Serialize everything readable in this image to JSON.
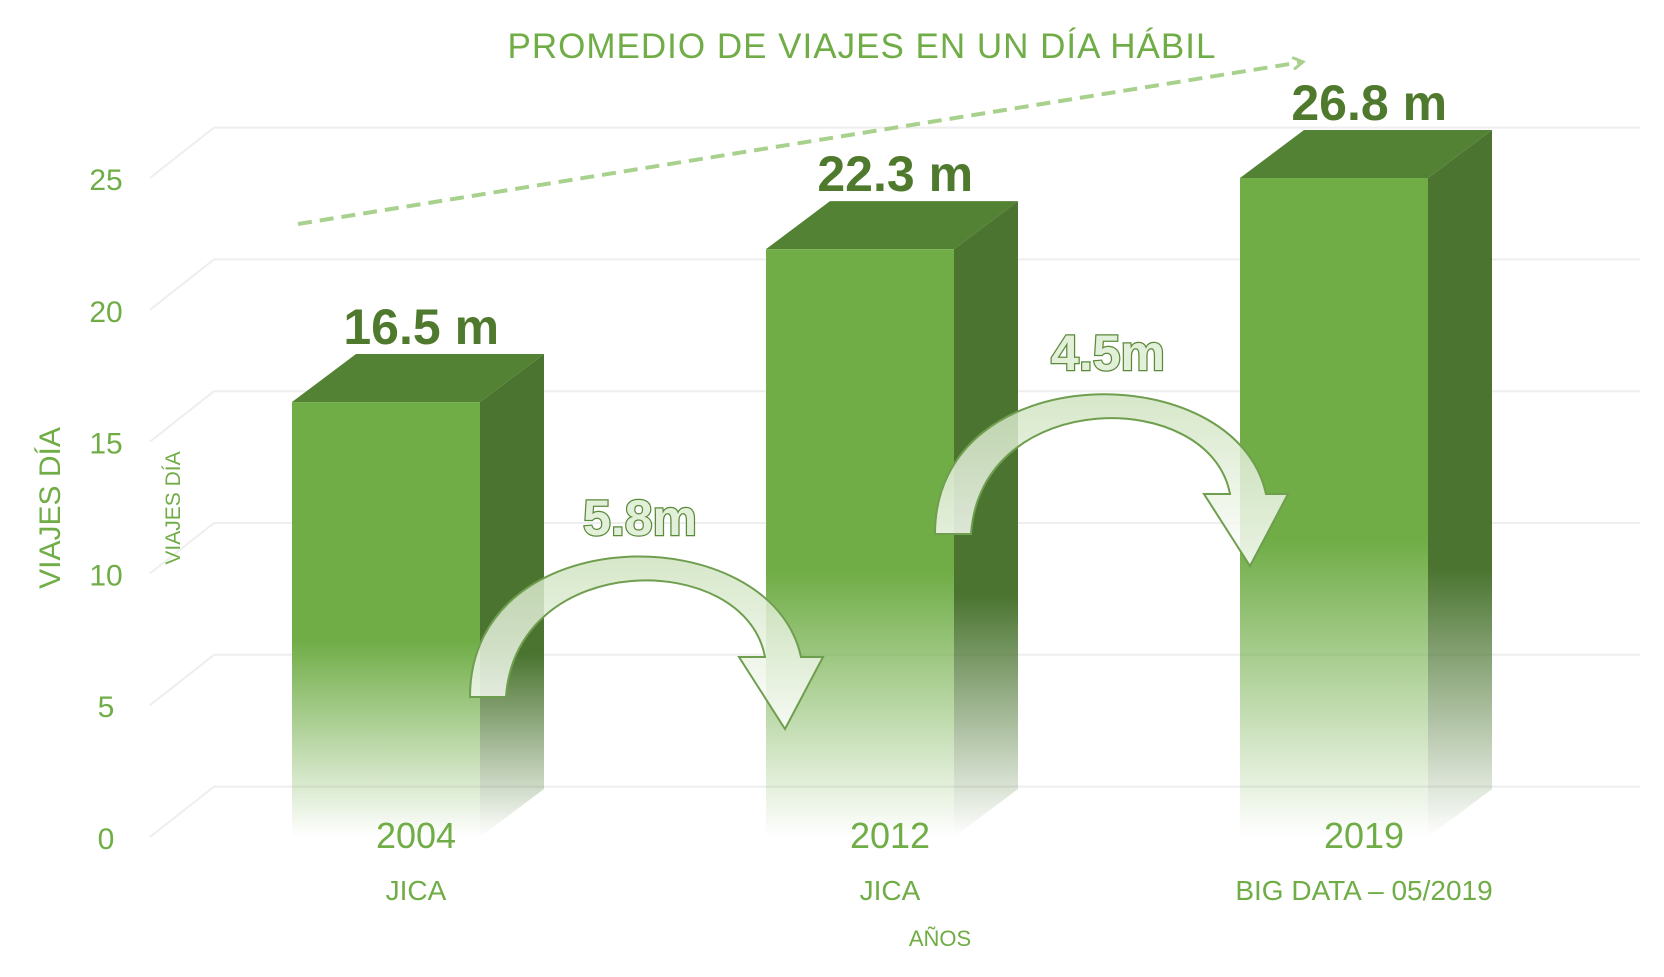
{
  "chart_data": {
    "type": "bar",
    "title": "PROMEDIO DE VIAJES EN UN DÍA HÁBIL",
    "categories": [
      "2004",
      "2012",
      "2019"
    ],
    "sublabels": [
      "JICA",
      "JICA",
      "BIG DATA – 05/2019"
    ],
    "values": [
      16.5,
      22.3,
      26.8
    ],
    "value_labels": [
      "16.5 m",
      "22.3 m",
      "26.8 m"
    ],
    "increments": [
      {
        "from": "2004",
        "to": "2012",
        "label": "5.8m"
      },
      {
        "from": "2012",
        "to": "2019",
        "label": "4.5m"
      }
    ],
    "ylabel": "VIAJES DÍA",
    "ylabel_secondary": "VIAJES DÍA",
    "xlabel": "AÑOS",
    "ylim": [
      0,
      25
    ],
    "yticks": [
      0,
      5,
      10,
      15,
      20,
      25
    ],
    "grid": true,
    "colors": {
      "bar_front": "#70ad47",
      "bar_side": "#4a7430",
      "bar_top": "#548235",
      "text": "#70ad47",
      "label_dark": "#4f7a2e",
      "trend_arrow": "#a9d18e"
    }
  }
}
